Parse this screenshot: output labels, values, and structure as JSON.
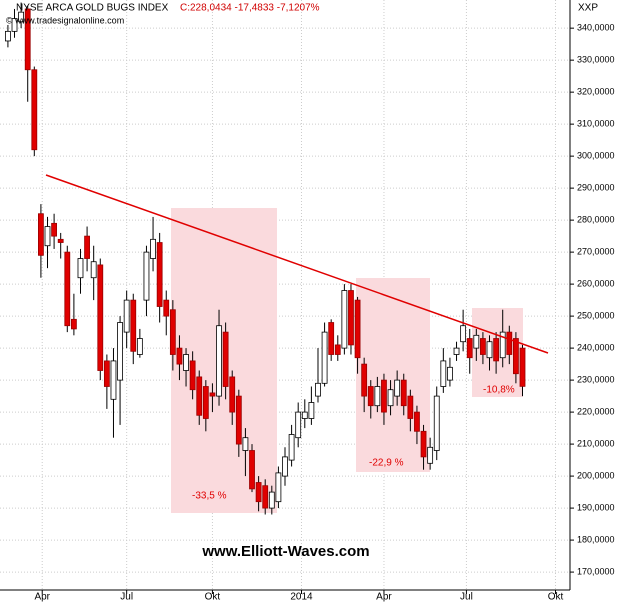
{
  "chart_data": {
    "type": "candlestick",
    "title": "NYSE ARCA GOLD BUGS INDEX",
    "subtitle": "C:228,0434 -17,4833 -7,1207%",
    "source": "© www.tradesignalonline.com",
    "symbol": "XXP",
    "watermark": "www.Elliott-Waves.com",
    "annotations": [
      "-33,5 %",
      "-22,9 %",
      "-10,8%"
    ],
    "up_color": "#ffffff",
    "down_color": "#e00000",
    "grid": true,
    "open": [
      336,
      339,
      342,
      346,
      327,
      282,
      272,
      279,
      274,
      270,
      249,
      262,
      275,
      262,
      266,
      236,
      224,
      230,
      245,
      255,
      238,
      255,
      268,
      273,
      255,
      252,
      240,
      233,
      236,
      231,
      228,
      226,
      225,
      245,
      231,
      225,
      208,
      208,
      198,
      197,
      190,
      192,
      200,
      205,
      212,
      218,
      218,
      225,
      229,
      248,
      241,
      240,
      258,
      255,
      235,
      228,
      222,
      230,
      222,
      225,
      230,
      225,
      220,
      214,
      204,
      208,
      228,
      230,
      238,
      242,
      243,
      240,
      243,
      237,
      243,
      237,
      245,
      243,
      240
    ],
    "high": [
      341,
      346,
      348,
      347,
      328,
      285,
      281,
      282,
      276,
      272,
      257,
      271,
      278,
      272,
      268,
      238,
      240,
      250,
      258,
      257,
      246,
      272,
      281,
      276,
      258,
      255,
      244,
      240,
      239,
      233,
      230,
      229,
      252,
      248,
      233,
      227,
      215,
      210,
      200,
      199,
      197,
      203,
      209,
      216,
      223,
      224,
      228,
      240,
      248,
      249,
      244,
      260,
      260,
      256,
      237,
      230,
      231,
      232,
      230,
      233,
      232,
      227,
      222,
      216,
      212,
      228,
      240,
      237,
      242,
      252,
      246,
      246,
      245,
      244,
      245,
      252,
      247,
      245,
      241
    ],
    "low": [
      334,
      337,
      340,
      317,
      300,
      262,
      265,
      271,
      268,
      245,
      244,
      257,
      264,
      255,
      230,
      221,
      212,
      216,
      240,
      235,
      237,
      250,
      264,
      248,
      244,
      233,
      230,
      228,
      224,
      216,
      214,
      220,
      222,
      224,
      216,
      206,
      200,
      195,
      189,
      188,
      188,
      190,
      197,
      203,
      209,
      215,
      216,
      223,
      228,
      236,
      236,
      238,
      238,
      232,
      220,
      218,
      220,
      216,
      219,
      222,
      219,
      214,
      210,
      202,
      202,
      205,
      226,
      228,
      236,
      239,
      232,
      236,
      235,
      233,
      232,
      234,
      235,
      229,
      225
    ],
    "close": [
      339,
      343,
      345,
      327,
      302,
      269,
      278,
      275,
      273,
      247,
      246,
      268,
      268,
      267,
      233,
      228,
      236,
      248,
      255,
      239,
      243,
      270,
      274,
      253,
      250,
      238,
      235,
      238,
      227,
      219,
      218,
      225,
      247,
      228,
      220,
      210,
      212,
      196,
      192,
      190,
      195,
      201,
      206,
      213,
      220,
      220,
      223,
      229,
      245,
      238,
      238,
      258,
      241,
      237,
      225,
      222,
      228,
      220,
      227,
      230,
      222,
      218,
      214,
      206,
      209,
      225,
      236,
      234,
      240,
      247,
      237,
      244,
      238,
      242,
      236,
      245,
      238,
      232,
      228.04
    ],
    "xlim": [
      -1.2,
      85.2
    ],
    "xticks": [
      {
        "value": 5.2,
        "label": "Apr"
      },
      {
        "value": 18,
        "label": "Jul"
      },
      {
        "value": 31,
        "label": "Okt"
      },
      {
        "value": 44.5,
        "label": "2014"
      },
      {
        "value": 57,
        "label": "Apr"
      },
      {
        "value": 69.5,
        "label": "Jul"
      },
      {
        "value": 83,
        "label": "Okt"
      }
    ],
    "ylim": [
      164.4,
      348.8
    ],
    "yticks": [
      {
        "value": 170,
        "label": "170,0000"
      },
      {
        "value": 180,
        "label": "180,0000"
      },
      {
        "value": 190,
        "label": "190,0000"
      },
      {
        "value": 200,
        "label": "200,0000"
      },
      {
        "value": 210,
        "label": "210,0000"
      },
      {
        "value": 220,
        "label": "220,0000"
      },
      {
        "value": 230,
        "label": "230,0000"
      },
      {
        "value": 240,
        "label": "240,0000"
      },
      {
        "value": 250,
        "label": "250,0000"
      },
      {
        "value": 260,
        "label": "260,0000"
      },
      {
        "value": 270,
        "label": "270,0000"
      },
      {
        "value": 280,
        "label": "280,0000"
      },
      {
        "value": 290,
        "label": "290,0000"
      },
      {
        "value": 300,
        "label": "300,0000"
      },
      {
        "value": 310,
        "label": "310,0000"
      },
      {
        "value": 320,
        "label": "320,0000"
      },
      {
        "value": 330,
        "label": "330,0000"
      },
      {
        "value": 340,
        "label": "340,0000"
      }
    ]
  }
}
